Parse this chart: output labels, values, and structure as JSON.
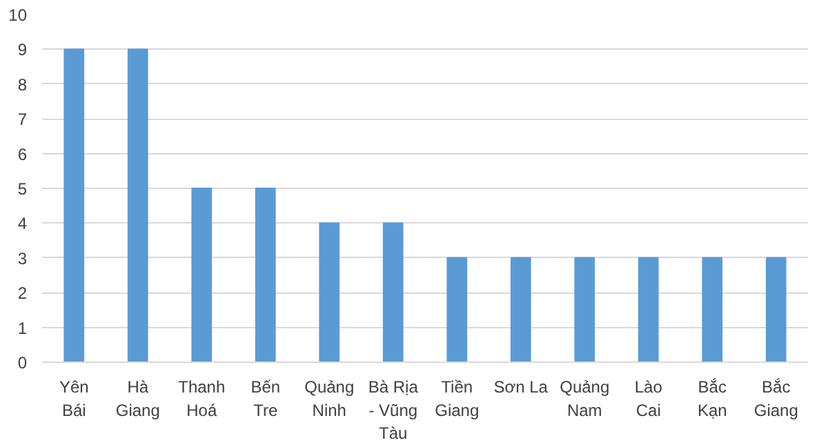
{
  "chart_data": {
    "type": "bar",
    "categories": [
      "Yên Bái",
      "Hà Giang",
      "Thanh Hoá",
      "Bến Tre",
      "Quảng Ninh",
      "Bà Rịa - Vũng Tàu",
      "Tiền Giang",
      "Sơn La",
      "Quảng Nam",
      "Lào Cai",
      "Bắc Kạn",
      "Bắc Giang"
    ],
    "values": [
      9,
      9,
      5,
      5,
      4,
      4,
      3,
      3,
      3,
      3,
      3,
      3
    ],
    "color": "#5b9bd5",
    "ylim": [
      0,
      10
    ],
    "yticks": [
      0,
      1,
      2,
      3,
      4,
      5,
      6,
      7,
      8,
      9,
      10
    ],
    "grid": "y"
  }
}
